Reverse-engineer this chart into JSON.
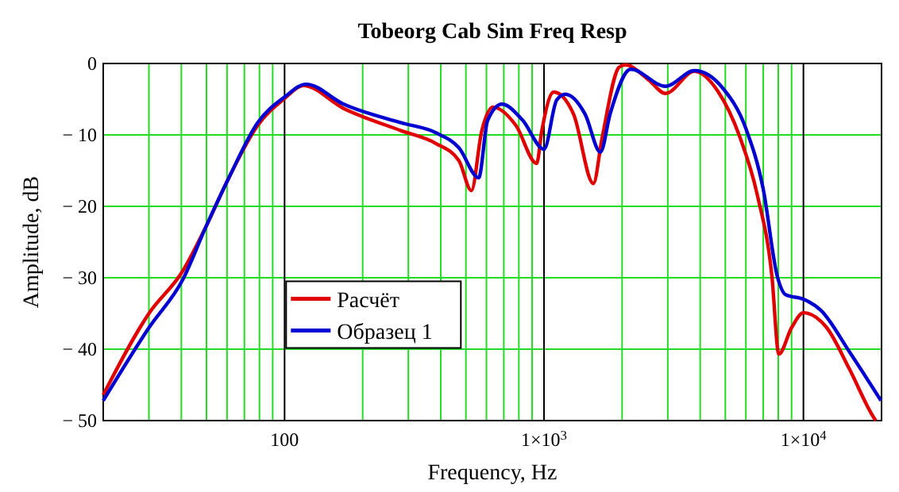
{
  "chart_data": {
    "type": "line",
    "title": "Tobeorg Cab Sim Freq Resp",
    "xlabel": "Frequency, Hz",
    "ylabel": "Amplitude, dB",
    "log": "x",
    "grid": true,
    "legend": "bottom left",
    "line_style": "solid",
    "marker": "none",
    "xlim": [
      20,
      20000
    ],
    "xticks": [
      {
        "value": 20,
        "label": null
      },
      {
        "value": 30,
        "label": null
      },
      {
        "value": 40,
        "label": null
      },
      {
        "value": 50,
        "label": null
      },
      {
        "value": 60,
        "label": null
      },
      {
        "value": 70,
        "label": null
      },
      {
        "value": 80,
        "label": null
      },
      {
        "value": 90,
        "label": null
      },
      {
        "value": 100,
        "label": "100"
      },
      {
        "value": 200,
        "label": null
      },
      {
        "value": 300,
        "label": null
      },
      {
        "value": 400,
        "label": null
      },
      {
        "value": 500,
        "label": null
      },
      {
        "value": 600,
        "label": null
      },
      {
        "value": 700,
        "label": null
      },
      {
        "value": 800,
        "label": null
      },
      {
        "value": 900,
        "label": null
      },
      {
        "value": 1000,
        "label": "1×10$^{3}$"
      },
      {
        "value": 2000,
        "label": null
      },
      {
        "value": 3000,
        "label": null
      },
      {
        "value": 4000,
        "label": null
      },
      {
        "value": 5000,
        "label": null
      },
      {
        "value": 6000,
        "label": null
      },
      {
        "value": 7000,
        "label": null
      },
      {
        "value": 8000,
        "label": null
      },
      {
        "value": 9000,
        "label": null
      },
      {
        "value": 10000,
        "label": "1×10$^{4}$"
      }
    ],
    "ylim": [
      -50,
      0
    ],
    "yticks": [
      {
        "value": -50,
        "label": "− 50"
      },
      {
        "value": -40,
        "label": "− 40"
      },
      {
        "value": -30,
        "label": "− 30"
      },
      {
        "value": -20,
        "label": "− 20"
      },
      {
        "value": -10,
        "label": "− 10"
      },
      0
    ],
    "series": [
      {
        "name": "Расчёт",
        "color": "#e00000",
        "x": [
          20,
          30,
          40.6,
          49.7,
          61,
          78.7,
          100,
          118,
          169,
          281,
          383,
          470,
          525,
          575,
          636,
          780,
          937,
          980,
          1090,
          1300,
          1550,
          1675,
          1950,
          2060,
          2530,
          2940,
          3800,
          4680,
          5700,
          6640,
          7560,
          8040,
          9000,
          10000,
          12300,
          15000,
          18400,
          19000
        ],
        "values": [
          -46.4,
          -35,
          -29,
          -22.9,
          -16,
          -8.7,
          -4.9,
          -3.1,
          -6.3,
          -9.4,
          -11.2,
          -13.6,
          -17.8,
          -9.5,
          -6.1,
          -8.7,
          -14,
          -9.5,
          -4,
          -7.1,
          -16.8,
          -10.4,
          -0.5,
          -0.2,
          -2.3,
          -4.2,
          -1.1,
          -3.9,
          -10.4,
          -18.4,
          -29.8,
          -40.7,
          -37,
          -34.9,
          -37,
          -42.7,
          -49.2,
          -50
        ]
      },
      {
        "name": "Образец 1",
        "color": "#0000d0",
        "x": [
          20,
          30,
          40.6,
          49.7,
          61,
          78.7,
          100,
          121,
          169,
          281,
          383,
          470,
          560,
          606,
          688,
          825,
          1000,
          1120,
          1210,
          1440,
          1650,
          1800,
          2160,
          2940,
          3800,
          4900,
          6000,
          7000,
          7930,
          8560,
          10000,
          11700,
          15000,
          19900
        ],
        "values": [
          -47.2,
          -37,
          -30.2,
          -22.9,
          -16,
          -8.3,
          -4.7,
          -2.9,
          -5.7,
          -8.3,
          -9.7,
          -11.8,
          -16,
          -8,
          -5.7,
          -7.9,
          -12,
          -5.1,
          -4.3,
          -7.1,
          -12.4,
          -7,
          -0.8,
          -3.2,
          -1,
          -3.5,
          -9.1,
          -17.6,
          -29.8,
          -32.4,
          -33,
          -34.6,
          -40.3,
          -47.2
        ]
      }
    ]
  }
}
